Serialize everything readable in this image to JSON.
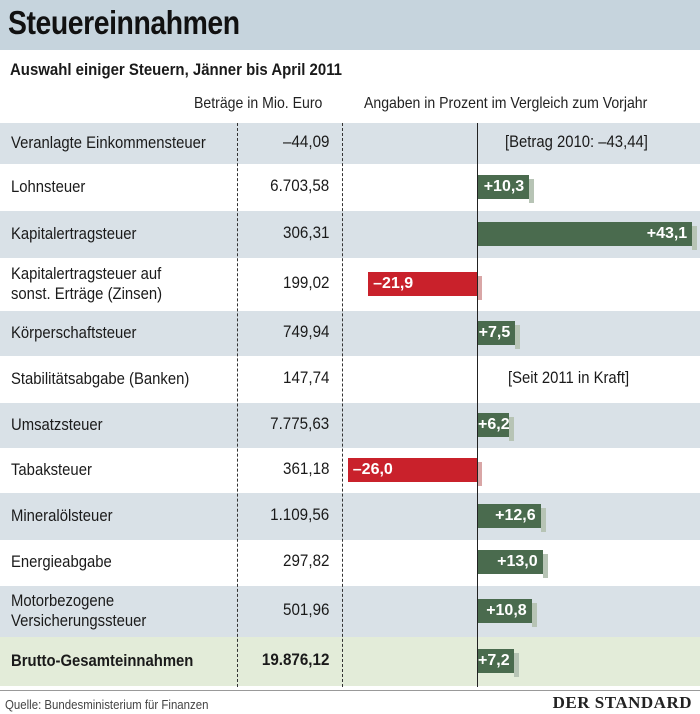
{
  "title": "Steuereinnahmen",
  "subtitle": "Auswahl einiger Steuern, Jänner bis April 2011",
  "column_headers": {
    "amounts": "Beträge in Mio. Euro",
    "percent": "Angaben in Prozent im Vergleich zum Vorjahr"
  },
  "source": "Quelle: Bundesministerium für Finanzen",
  "logo": "DER STANDARD",
  "colors": {
    "positive": "#4a6b4e",
    "negative": "#c9212b",
    "shade": "#d9e1e7",
    "total": "#e3ecd9",
    "title_bar": "#c6d4dd"
  },
  "chart_data": {
    "type": "bar",
    "orientation": "horizontal",
    "rows": [
      {
        "label": [
          "Veranlagte Einkommensteuer"
        ],
        "amount": "–44,09",
        "change": null,
        "change_label": "",
        "note": "[Betrag 2010: –43,44]"
      },
      {
        "label": [
          "Lohnsteuer"
        ],
        "amount": "6.703,58",
        "change": 10.3,
        "change_label": "+10,3",
        "note": ""
      },
      {
        "label": [
          "Kapitalertragsteuer"
        ],
        "amount": "306,31",
        "change": 43.1,
        "change_label": "+43,1",
        "note": ""
      },
      {
        "label": [
          "Kapitalertragsteuer auf",
          "sonst. Erträge (Zinsen)"
        ],
        "amount": "199,02",
        "change": -21.9,
        "change_label": "–21,9",
        "note": ""
      },
      {
        "label": [
          "Körperschaftsteuer"
        ],
        "amount": "749,94",
        "change": 7.5,
        "change_label": "+7,5",
        "note": ""
      },
      {
        "label": [
          "Stabilitätsabgabe (Banken)"
        ],
        "amount": "147,74",
        "change": null,
        "change_label": "",
        "note": "[Seit 2011 in Kraft]"
      },
      {
        "label": [
          "Umsatzsteuer"
        ],
        "amount": "7.775,63",
        "change": 6.2,
        "change_label": "+6,2",
        "note": ""
      },
      {
        "label": [
          "Tabaksteuer"
        ],
        "amount": "361,18",
        "change": -26.0,
        "change_label": "–26,0",
        "note": ""
      },
      {
        "label": [
          "Mineralölsteuer"
        ],
        "amount": "1.109,56",
        "change": 12.6,
        "change_label": "+12,6",
        "note": ""
      },
      {
        "label": [
          "Energieabgabe"
        ],
        "amount": "297,82",
        "change": 13.0,
        "change_label": "+13,0",
        "note": ""
      },
      {
        "label": [
          "Motorbezogene",
          "Versicherungssteuer"
        ],
        "amount": "501,96",
        "change": 10.8,
        "change_label": "+10,8",
        "note": ""
      },
      {
        "label": [
          "Brutto-Gesamteinnahmen"
        ],
        "amount": "19.876,12",
        "change": 7.2,
        "change_label": "+7,2",
        "note": "",
        "total": true
      }
    ]
  }
}
